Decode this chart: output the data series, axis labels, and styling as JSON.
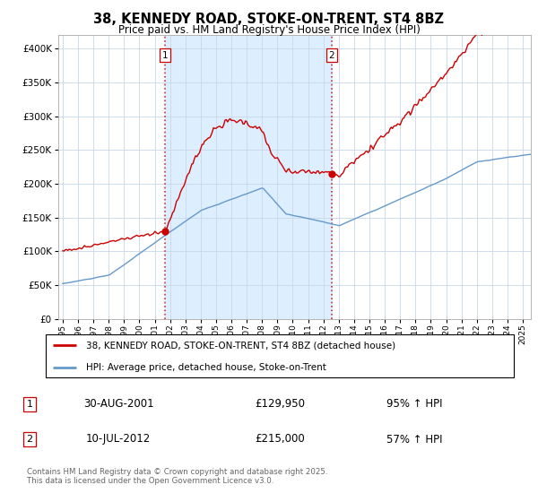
{
  "title": "38, KENNEDY ROAD, STOKE-ON-TRENT, ST4 8BZ",
  "subtitle": "Price paid vs. HM Land Registry's House Price Index (HPI)",
  "legend_line1": "38, KENNEDY ROAD, STOKE-ON-TRENT, ST4 8BZ (detached house)",
  "legend_line2": "HPI: Average price, detached house, Stoke-on-Trent",
  "footnote": "Contains HM Land Registry data © Crown copyright and database right 2025.\nThis data is licensed under the Open Government Licence v3.0.",
  "sale1_date_str": "30-AUG-2001",
  "sale1_price_str": "£129,950",
  "sale1_hpi_str": "95% ↑ HPI",
  "sale2_date_str": "10-JUL-2012",
  "sale2_price_str": "£215,000",
  "sale2_hpi_str": "57% ↑ HPI",
  "ylim": [
    0,
    420000
  ],
  "yticks": [
    0,
    50000,
    100000,
    150000,
    200000,
    250000,
    300000,
    350000,
    400000
  ],
  "red_color": "#cc0000",
  "blue_color": "#6699cc",
  "shade_color": "#ddeeff",
  "marker1_date": 2001.664,
  "marker1_value": 129950,
  "marker2_date": 2012.537,
  "marker2_value": 215000,
  "xlim_left": 1994.7,
  "xlim_right": 2025.5
}
